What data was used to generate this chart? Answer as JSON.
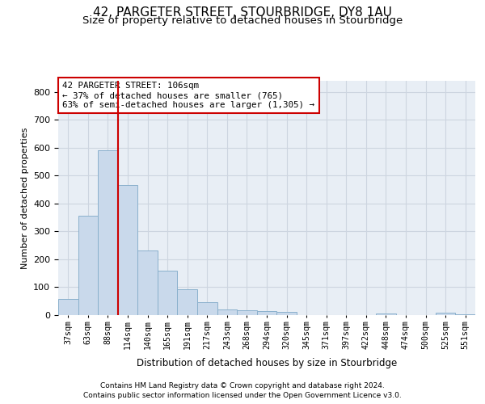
{
  "title": "42, PARGETER STREET, STOURBRIDGE, DY8 1AU",
  "subtitle": "Size of property relative to detached houses in Stourbridge",
  "xlabel": "Distribution of detached houses by size in Stourbridge",
  "ylabel": "Number of detached properties",
  "categories": [
    "37sqm",
    "63sqm",
    "88sqm",
    "114sqm",
    "140sqm",
    "165sqm",
    "191sqm",
    "217sqm",
    "243sqm",
    "268sqm",
    "294sqm",
    "320sqm",
    "345sqm",
    "371sqm",
    "397sqm",
    "422sqm",
    "448sqm",
    "474sqm",
    "500sqm",
    "525sqm",
    "551sqm"
  ],
  "values": [
    57,
    355,
    590,
    466,
    232,
    160,
    93,
    45,
    20,
    18,
    15,
    12,
    0,
    0,
    0,
    0,
    5,
    0,
    0,
    8,
    4
  ],
  "bar_color": "#c9d9eb",
  "bar_edge_color": "#8ab0cc",
  "vline_color": "#cc0000",
  "annotation_text": "42 PARGETER STREET: 106sqm\n← 37% of detached houses are smaller (765)\n63% of semi-detached houses are larger (1,305) →",
  "annotation_box_color": "#ffffff",
  "annotation_box_edge": "#cc0000",
  "footer1": "Contains HM Land Registry data © Crown copyright and database right 2024.",
  "footer2": "Contains public sector information licensed under the Open Government Licence v3.0.",
  "ylim": [
    0,
    840
  ],
  "yticks": [
    0,
    100,
    200,
    300,
    400,
    500,
    600,
    700,
    800
  ],
  "grid_color": "#cdd5e0",
  "bg_color": "#e8eef5",
  "title_fontsize": 11,
  "subtitle_fontsize": 9.5,
  "vline_pos": 2.5
}
